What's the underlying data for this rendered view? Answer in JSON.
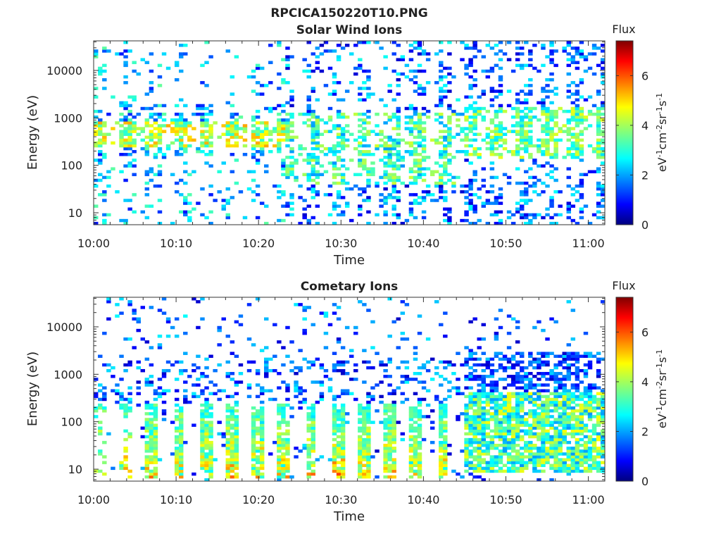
{
  "figure": {
    "main_title": "RPCICA150220T10.PNG"
  },
  "chart_data": [
    {
      "type": "heatmap",
      "title": "Solar Wind Ions",
      "xlabel": "Time",
      "ylabel": "Energy (eV)",
      "x_range": [
        "10:00",
        "11:02"
      ],
      "x_ticks": [
        "10:00",
        "10:10",
        "10:20",
        "10:30",
        "10:40",
        "10:50",
        "11:00"
      ],
      "y_scale": "log",
      "y_range": [
        5.6,
        42000
      ],
      "y_ticks": [
        10,
        100,
        1000,
        10000
      ],
      "y_tick_labels": [
        "10",
        "100",
        "1000",
        "10000"
      ],
      "colorbar": {
        "title": "Flux",
        "label": "eV-1cm-2sr-1s-1",
        "range": [
          0,
          7.4
        ],
        "ticks": [
          0,
          2,
          4,
          6
        ],
        "tick_labels": [
          "0",
          "2",
          "4",
          "6"
        ],
        "colormap": "jet"
      },
      "features": [
        {
          "description": "solar wind peak",
          "time_range": [
            "10:00",
            "10:23"
          ],
          "energy_eV": [
            300,
            800
          ],
          "flux": [
            3,
            5
          ]
        },
        {
          "description": "broad distribution",
          "time_range": [
            "10:23",
            "10:45"
          ],
          "energy_eV": [
            50,
            1000
          ],
          "flux": [
            2,
            4
          ]
        },
        {
          "description": "banded structure",
          "time_range": [
            "10:45",
            "11:02"
          ],
          "energy_eV": [
            200,
            2000
          ],
          "flux": [
            2,
            4.5
          ]
        }
      ]
    },
    {
      "type": "heatmap",
      "title": "Cometary Ions",
      "xlabel": "Time",
      "ylabel": "Energy (eV)",
      "x_range": [
        "10:00",
        "11:02"
      ],
      "x_ticks": [
        "10:00",
        "10:10",
        "10:20",
        "10:30",
        "10:40",
        "10:50",
        "11:00"
      ],
      "y_scale": "log",
      "y_range": [
        5.6,
        42000
      ],
      "y_ticks": [
        10,
        100,
        1000,
        10000
      ],
      "y_tick_labels": [
        "10",
        "100",
        "1000",
        "10000"
      ],
      "colorbar": {
        "title": "Flux",
        "label": "eV-1cm-2sr-1s-1",
        "range": [
          0,
          7.4
        ],
        "ticks": [
          0,
          2,
          4,
          6
        ],
        "tick_labels": [
          "0",
          "2",
          "4",
          "6"
        ],
        "colormap": "jet"
      },
      "features": [
        {
          "description": "periodic cometary ion bursts",
          "time_range": [
            "10:05",
            "10:45"
          ],
          "energy_eV": [
            10,
            200
          ],
          "flux": [
            4,
            6.5
          ]
        },
        {
          "description": "moderate flux band",
          "time_range": [
            "10:45",
            "11:02"
          ],
          "energy_eV": [
            10,
            200
          ],
          "flux": [
            2,
            4.5
          ]
        }
      ]
    }
  ]
}
